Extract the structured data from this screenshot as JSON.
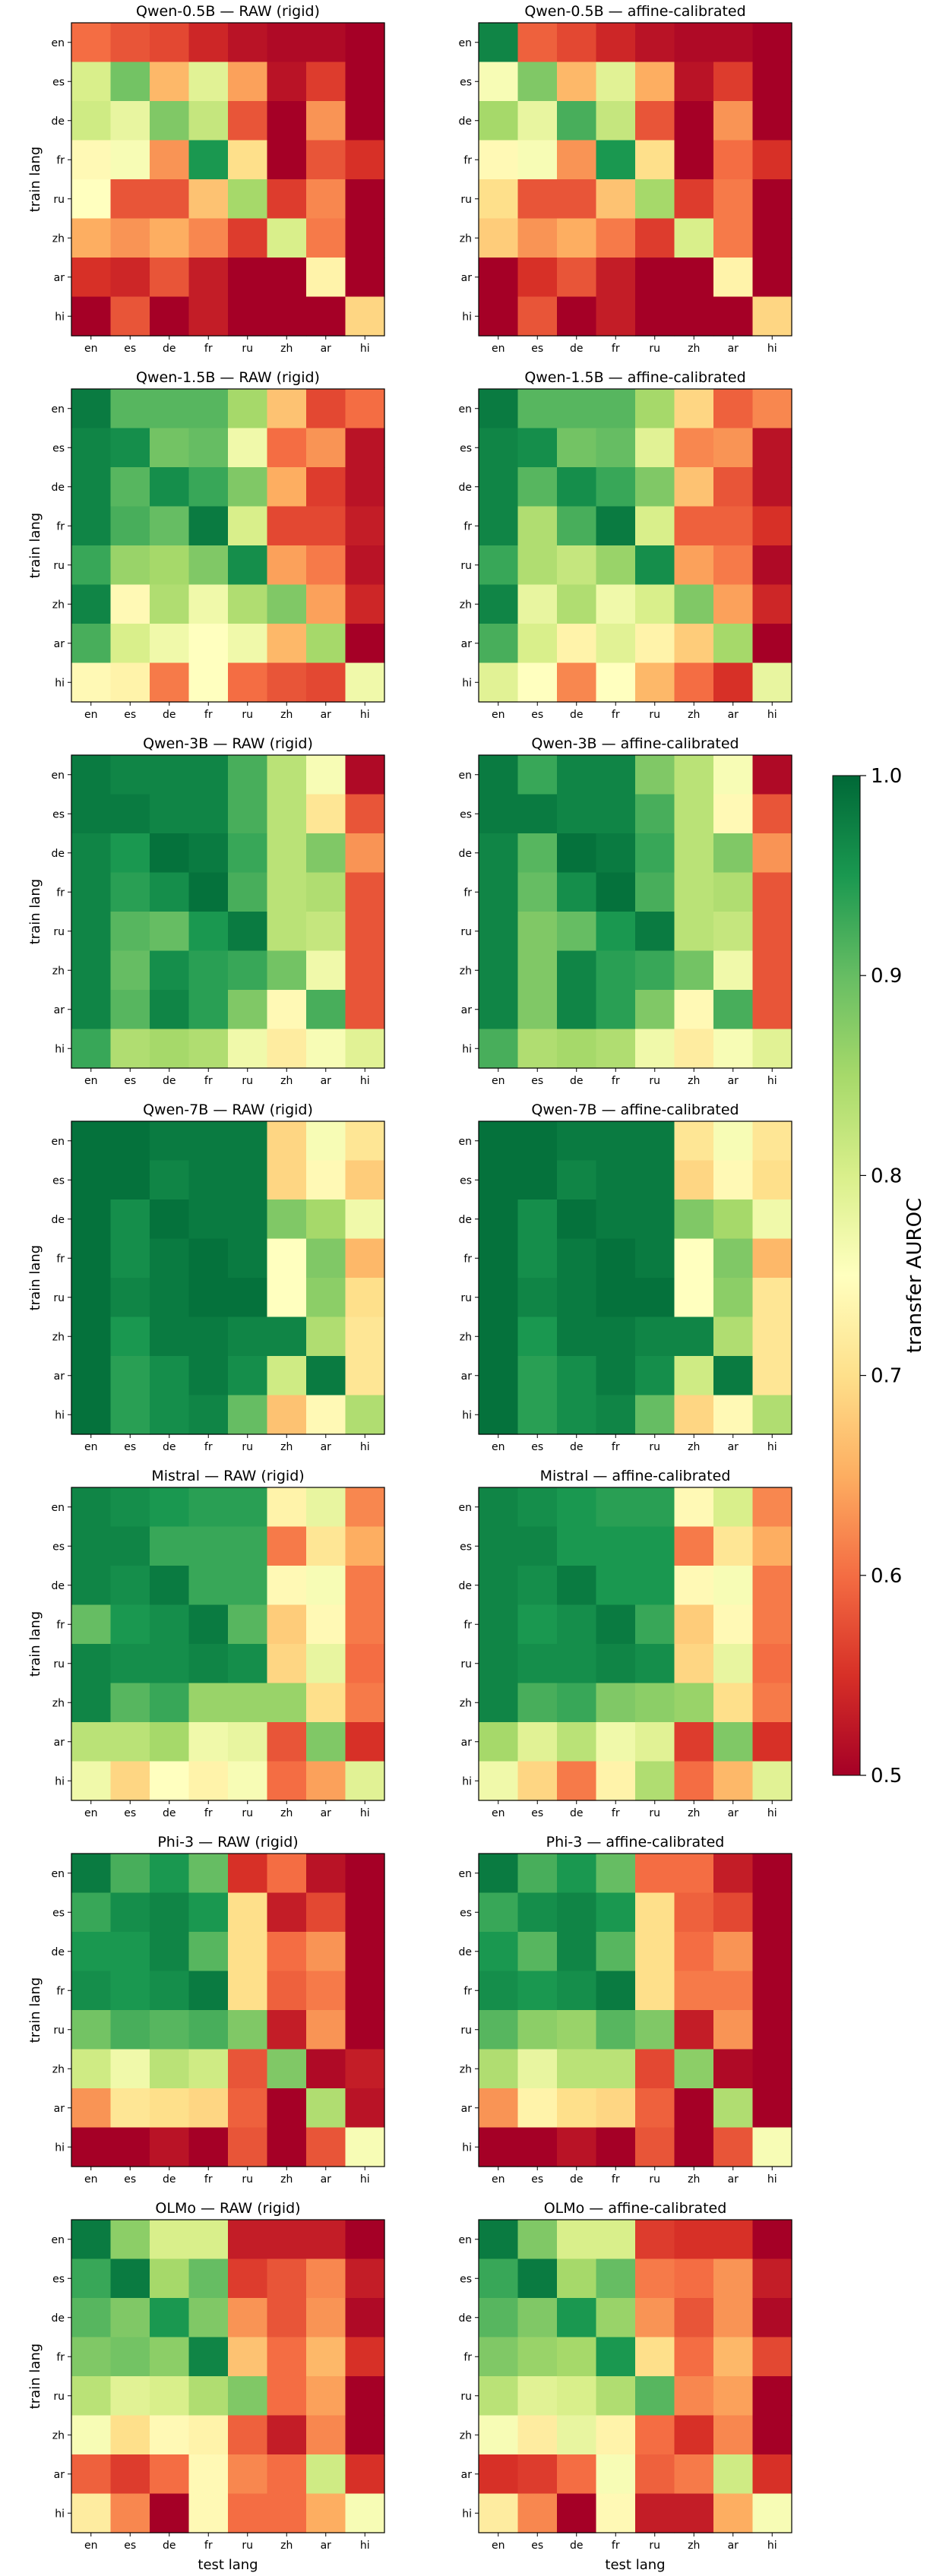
{
  "colorbar": {
    "label": "transfer AUROC",
    "ticks": [
      "0.5",
      "0.6",
      "0.7",
      "0.8",
      "0.9",
      "1.0"
    ],
    "range": [
      0.5,
      1.0
    ],
    "colormap": "RdYlGn"
  },
  "axes": {
    "xlabel": "test lang",
    "ylabel": "train lang"
  },
  "languages": [
    "en",
    "es",
    "de",
    "fr",
    "ru",
    "zh",
    "ar",
    "hi"
  ],
  "chart_data": [
    {
      "type": "heatmap",
      "title": "Qwen-0.5B — RAW (rigid)",
      "values": [
        [
          0.6,
          0.58,
          0.57,
          0.54,
          0.52,
          0.51,
          0.51,
          0.5
        ],
        [
          0.8,
          0.89,
          0.66,
          0.79,
          0.64,
          0.52,
          0.56,
          0.5
        ],
        [
          0.81,
          0.78,
          0.88,
          0.82,
          0.58,
          0.5,
          0.63,
          0.5
        ],
        [
          0.74,
          0.76,
          0.63,
          0.95,
          0.7,
          0.5,
          0.58,
          0.55
        ],
        [
          0.75,
          0.58,
          0.58,
          0.67,
          0.85,
          0.56,
          0.62,
          0.5
        ],
        [
          0.65,
          0.63,
          0.65,
          0.62,
          0.56,
          0.8,
          0.61,
          0.5
        ],
        [
          0.55,
          0.54,
          0.58,
          0.53,
          0.5,
          0.5,
          0.73,
          0.5
        ],
        [
          0.5,
          0.58,
          0.5,
          0.53,
          0.5,
          0.5,
          0.5,
          0.69
        ]
      ]
    },
    {
      "type": "heatmap",
      "title": "Qwen-0.5B — affine-calibrated",
      "values": [
        [
          0.97,
          0.59,
          0.57,
          0.54,
          0.52,
          0.51,
          0.51,
          0.5
        ],
        [
          0.76,
          0.88,
          0.66,
          0.79,
          0.65,
          0.52,
          0.56,
          0.5
        ],
        [
          0.85,
          0.78,
          0.92,
          0.82,
          0.58,
          0.5,
          0.63,
          0.5
        ],
        [
          0.74,
          0.76,
          0.63,
          0.95,
          0.7,
          0.5,
          0.6,
          0.55
        ],
        [
          0.7,
          0.58,
          0.58,
          0.67,
          0.85,
          0.56,
          0.61,
          0.5
        ],
        [
          0.68,
          0.63,
          0.65,
          0.61,
          0.56,
          0.8,
          0.61,
          0.5
        ],
        [
          0.5,
          0.55,
          0.58,
          0.53,
          0.5,
          0.5,
          0.73,
          0.5
        ],
        [
          0.5,
          0.58,
          0.5,
          0.53,
          0.5,
          0.5,
          0.5,
          0.69
        ]
      ]
    },
    {
      "type": "heatmap",
      "title": "Qwen-1.5B — RAW (rigid)",
      "values": [
        [
          0.98,
          0.91,
          0.91,
          0.91,
          0.85,
          0.67,
          0.57,
          0.6
        ],
        [
          0.97,
          0.96,
          0.89,
          0.9,
          0.77,
          0.6,
          0.63,
          0.52
        ],
        [
          0.97,
          0.91,
          0.96,
          0.93,
          0.88,
          0.65,
          0.56,
          0.52
        ],
        [
          0.97,
          0.92,
          0.9,
          0.98,
          0.8,
          0.57,
          0.57,
          0.53
        ],
        [
          0.93,
          0.86,
          0.85,
          0.88,
          0.96,
          0.64,
          0.61,
          0.52
        ],
        [
          0.97,
          0.74,
          0.84,
          0.77,
          0.84,
          0.88,
          0.64,
          0.54
        ],
        [
          0.92,
          0.8,
          0.77,
          0.75,
          0.77,
          0.66,
          0.85,
          0.5
        ],
        [
          0.74,
          0.73,
          0.61,
          0.75,
          0.6,
          0.58,
          0.57,
          0.77
        ]
      ]
    },
    {
      "type": "heatmap",
      "title": "Qwen-1.5B — affine-calibrated",
      "values": [
        [
          0.98,
          0.91,
          0.91,
          0.91,
          0.85,
          0.69,
          0.59,
          0.62
        ],
        [
          0.97,
          0.96,
          0.89,
          0.9,
          0.79,
          0.62,
          0.63,
          0.52
        ],
        [
          0.97,
          0.91,
          0.96,
          0.93,
          0.88,
          0.67,
          0.58,
          0.52
        ],
        [
          0.97,
          0.84,
          0.92,
          0.98,
          0.8,
          0.59,
          0.59,
          0.55
        ],
        [
          0.93,
          0.84,
          0.82,
          0.86,
          0.96,
          0.64,
          0.61,
          0.51
        ],
        [
          0.97,
          0.78,
          0.84,
          0.77,
          0.8,
          0.88,
          0.64,
          0.54
        ],
        [
          0.92,
          0.8,
          0.73,
          0.79,
          0.73,
          0.68,
          0.85,
          0.5
        ],
        [
          0.79,
          0.75,
          0.62,
          0.75,
          0.66,
          0.6,
          0.55,
          0.78
        ]
      ]
    },
    {
      "type": "heatmap",
      "title": "Qwen-3B — RAW (rigid)",
      "values": [
        [
          0.98,
          0.97,
          0.97,
          0.97,
          0.92,
          0.83,
          0.76,
          0.51
        ],
        [
          0.98,
          0.98,
          0.97,
          0.97,
          0.92,
          0.83,
          0.71,
          0.58
        ],
        [
          0.97,
          0.95,
          0.99,
          0.98,
          0.93,
          0.83,
          0.88,
          0.63
        ],
        [
          0.97,
          0.94,
          0.96,
          0.99,
          0.92,
          0.83,
          0.84,
          0.58
        ],
        [
          0.97,
          0.91,
          0.9,
          0.95,
          0.98,
          0.83,
          0.82,
          0.58
        ],
        [
          0.97,
          0.9,
          0.96,
          0.94,
          0.93,
          0.89,
          0.77,
          0.58
        ],
        [
          0.97,
          0.91,
          0.97,
          0.94,
          0.88,
          0.74,
          0.92,
          0.58
        ],
        [
          0.93,
          0.84,
          0.85,
          0.84,
          0.77,
          0.72,
          0.76,
          0.79
        ]
      ]
    },
    {
      "type": "heatmap",
      "title": "Qwen-3B — affine-calibrated",
      "values": [
        [
          0.98,
          0.93,
          0.97,
          0.97,
          0.88,
          0.83,
          0.76,
          0.51
        ],
        [
          0.98,
          0.98,
          0.97,
          0.97,
          0.92,
          0.83,
          0.74,
          0.58
        ],
        [
          0.97,
          0.91,
          0.99,
          0.98,
          0.93,
          0.83,
          0.88,
          0.63
        ],
        [
          0.97,
          0.9,
          0.96,
          0.99,
          0.92,
          0.83,
          0.84,
          0.58
        ],
        [
          0.97,
          0.88,
          0.9,
          0.95,
          0.98,
          0.83,
          0.82,
          0.58
        ],
        [
          0.97,
          0.88,
          0.97,
          0.94,
          0.93,
          0.89,
          0.77,
          0.58
        ],
        [
          0.97,
          0.88,
          0.97,
          0.94,
          0.88,
          0.74,
          0.92,
          0.58
        ],
        [
          0.92,
          0.84,
          0.85,
          0.84,
          0.77,
          0.72,
          0.76,
          0.79
        ]
      ]
    },
    {
      "type": "heatmap",
      "title": "Qwen-7B — RAW (rigid)",
      "values": [
        [
          0.99,
          0.99,
          0.98,
          0.98,
          0.98,
          0.69,
          0.76,
          0.71
        ],
        [
          0.99,
          0.99,
          0.97,
          0.98,
          0.98,
          0.69,
          0.74,
          0.68
        ],
        [
          0.99,
          0.96,
          0.99,
          0.98,
          0.98,
          0.88,
          0.85,
          0.77
        ],
        [
          0.99,
          0.96,
          0.98,
          0.99,
          0.98,
          0.75,
          0.88,
          0.66
        ],
        [
          0.99,
          0.97,
          0.98,
          0.99,
          0.99,
          0.75,
          0.87,
          0.7
        ],
        [
          0.99,
          0.95,
          0.98,
          0.98,
          0.97,
          0.97,
          0.84,
          0.71
        ],
        [
          0.99,
          0.94,
          0.96,
          0.98,
          0.96,
          0.81,
          0.98,
          0.71
        ],
        [
          0.99,
          0.94,
          0.96,
          0.97,
          0.9,
          0.67,
          0.74,
          0.84
        ]
      ]
    },
    {
      "type": "heatmap",
      "title": "Qwen-7B — affine-calibrated",
      "values": [
        [
          0.99,
          0.99,
          0.98,
          0.98,
          0.98,
          0.71,
          0.76,
          0.71
        ],
        [
          0.99,
          0.99,
          0.97,
          0.98,
          0.98,
          0.69,
          0.74,
          0.7
        ],
        [
          0.99,
          0.96,
          0.99,
          0.98,
          0.98,
          0.88,
          0.85,
          0.77
        ],
        [
          0.99,
          0.96,
          0.98,
          0.99,
          0.98,
          0.75,
          0.88,
          0.66
        ],
        [
          0.99,
          0.97,
          0.98,
          0.99,
          0.99,
          0.75,
          0.87,
          0.71
        ],
        [
          0.99,
          0.95,
          0.98,
          0.98,
          0.97,
          0.97,
          0.84,
          0.71
        ],
        [
          0.99,
          0.94,
          0.96,
          0.98,
          0.96,
          0.81,
          0.98,
          0.71
        ],
        [
          0.99,
          0.94,
          0.96,
          0.97,
          0.9,
          0.69,
          0.74,
          0.84
        ]
      ]
    },
    {
      "type": "heatmap",
      "title": "Mistral — RAW (rigid)",
      "values": [
        [
          0.97,
          0.96,
          0.95,
          0.94,
          0.94,
          0.73,
          0.78,
          0.62
        ],
        [
          0.97,
          0.97,
          0.93,
          0.93,
          0.93,
          0.61,
          0.71,
          0.65
        ],
        [
          0.97,
          0.96,
          0.98,
          0.93,
          0.93,
          0.74,
          0.76,
          0.61
        ],
        [
          0.9,
          0.95,
          0.96,
          0.98,
          0.91,
          0.68,
          0.74,
          0.61
        ],
        [
          0.97,
          0.96,
          0.96,
          0.97,
          0.96,
          0.69,
          0.78,
          0.6
        ],
        [
          0.97,
          0.91,
          0.93,
          0.86,
          0.86,
          0.86,
          0.7,
          0.61
        ],
        [
          0.83,
          0.83,
          0.85,
          0.77,
          0.78,
          0.58,
          0.88,
          0.55
        ],
        [
          0.77,
          0.69,
          0.75,
          0.73,
          0.76,
          0.6,
          0.64,
          0.79
        ]
      ]
    },
    {
      "type": "heatmap",
      "title": "Mistral — affine-calibrated",
      "values": [
        [
          0.97,
          0.96,
          0.95,
          0.94,
          0.94,
          0.74,
          0.8,
          0.62
        ],
        [
          0.97,
          0.97,
          0.95,
          0.95,
          0.95,
          0.61,
          0.71,
          0.65
        ],
        [
          0.97,
          0.96,
          0.98,
          0.95,
          0.95,
          0.74,
          0.76,
          0.61
        ],
        [
          0.97,
          0.95,
          0.96,
          0.98,
          0.93,
          0.68,
          0.74,
          0.61
        ],
        [
          0.97,
          0.96,
          0.96,
          0.97,
          0.96,
          0.69,
          0.78,
          0.6
        ],
        [
          0.97,
          0.92,
          0.93,
          0.88,
          0.87,
          0.86,
          0.7,
          0.61
        ],
        [
          0.85,
          0.79,
          0.83,
          0.77,
          0.79,
          0.56,
          0.88,
          0.55
        ],
        [
          0.77,
          0.69,
          0.61,
          0.73,
          0.84,
          0.6,
          0.66,
          0.79
        ]
      ]
    },
    {
      "type": "heatmap",
      "title": "Phi-3 — RAW (rigid)",
      "values": [
        [
          0.98,
          0.92,
          0.95,
          0.9,
          0.55,
          0.6,
          0.52,
          0.5
        ],
        [
          0.93,
          0.96,
          0.97,
          0.95,
          0.7,
          0.53,
          0.57,
          0.5
        ],
        [
          0.95,
          0.95,
          0.97,
          0.91,
          0.7,
          0.6,
          0.63,
          0.5
        ],
        [
          0.96,
          0.95,
          0.96,
          0.98,
          0.7,
          0.59,
          0.61,
          0.5
        ],
        [
          0.89,
          0.92,
          0.91,
          0.92,
          0.88,
          0.53,
          0.63,
          0.5
        ],
        [
          0.81,
          0.77,
          0.83,
          0.81,
          0.58,
          0.88,
          0.51,
          0.53
        ],
        [
          0.63,
          0.71,
          0.7,
          0.69,
          0.59,
          0.5,
          0.84,
          0.52
        ],
        [
          0.5,
          0.5,
          0.52,
          0.5,
          0.58,
          0.5,
          0.58,
          0.76
        ]
      ]
    },
    {
      "type": "heatmap",
      "title": "Phi-3 — affine-calibrated",
      "values": [
        [
          0.98,
          0.92,
          0.95,
          0.9,
          0.6,
          0.6,
          0.53,
          0.5
        ],
        [
          0.93,
          0.96,
          0.97,
          0.95,
          0.7,
          0.59,
          0.57,
          0.5
        ],
        [
          0.95,
          0.91,
          0.97,
          0.91,
          0.7,
          0.6,
          0.63,
          0.5
        ],
        [
          0.96,
          0.95,
          0.96,
          0.98,
          0.7,
          0.61,
          0.61,
          0.5
        ],
        [
          0.91,
          0.87,
          0.86,
          0.91,
          0.88,
          0.53,
          0.63,
          0.5
        ],
        [
          0.84,
          0.78,
          0.83,
          0.83,
          0.57,
          0.87,
          0.51,
          0.5
        ],
        [
          0.63,
          0.73,
          0.7,
          0.69,
          0.59,
          0.5,
          0.84,
          0.5
        ],
        [
          0.5,
          0.5,
          0.52,
          0.5,
          0.58,
          0.5,
          0.58,
          0.76
        ]
      ]
    },
    {
      "type": "heatmap",
      "title": "OLMo — RAW (rigid)",
      "values": [
        [
          0.98,
          0.87,
          0.8,
          0.8,
          0.53,
          0.53,
          0.53,
          0.5
        ],
        [
          0.93,
          0.98,
          0.85,
          0.9,
          0.56,
          0.58,
          0.62,
          0.53
        ],
        [
          0.91,
          0.88,
          0.95,
          0.88,
          0.63,
          0.58,
          0.63,
          0.51
        ],
        [
          0.88,
          0.89,
          0.87,
          0.97,
          0.67,
          0.6,
          0.66,
          0.55
        ],
        [
          0.83,
          0.79,
          0.8,
          0.84,
          0.88,
          0.6,
          0.64,
          0.5
        ],
        [
          0.76,
          0.7,
          0.74,
          0.73,
          0.59,
          0.53,
          0.62,
          0.5
        ],
        [
          0.59,
          0.56,
          0.6,
          0.74,
          0.62,
          0.6,
          0.81,
          0.55
        ],
        [
          0.72,
          0.62,
          0.5,
          0.74,
          0.6,
          0.6,
          0.65,
          0.76
        ]
      ]
    },
    {
      "type": "heatmap",
      "title": "OLMo — affine-calibrated",
      "values": [
        [
          0.98,
          0.88,
          0.8,
          0.8,
          0.56,
          0.55,
          0.55,
          0.5
        ],
        [
          0.93,
          0.98,
          0.85,
          0.9,
          0.61,
          0.6,
          0.63,
          0.53
        ],
        [
          0.91,
          0.88,
          0.95,
          0.86,
          0.63,
          0.58,
          0.63,
          0.51
        ],
        [
          0.88,
          0.86,
          0.85,
          0.95,
          0.7,
          0.6,
          0.66,
          0.57
        ],
        [
          0.83,
          0.79,
          0.8,
          0.84,
          0.91,
          0.62,
          0.64,
          0.5
        ],
        [
          0.76,
          0.72,
          0.78,
          0.73,
          0.6,
          0.55,
          0.62,
          0.5
        ],
        [
          0.55,
          0.56,
          0.6,
          0.76,
          0.59,
          0.61,
          0.81,
          0.55
        ],
        [
          0.72,
          0.62,
          0.5,
          0.74,
          0.53,
          0.53,
          0.65,
          0.76
        ]
      ]
    }
  ]
}
